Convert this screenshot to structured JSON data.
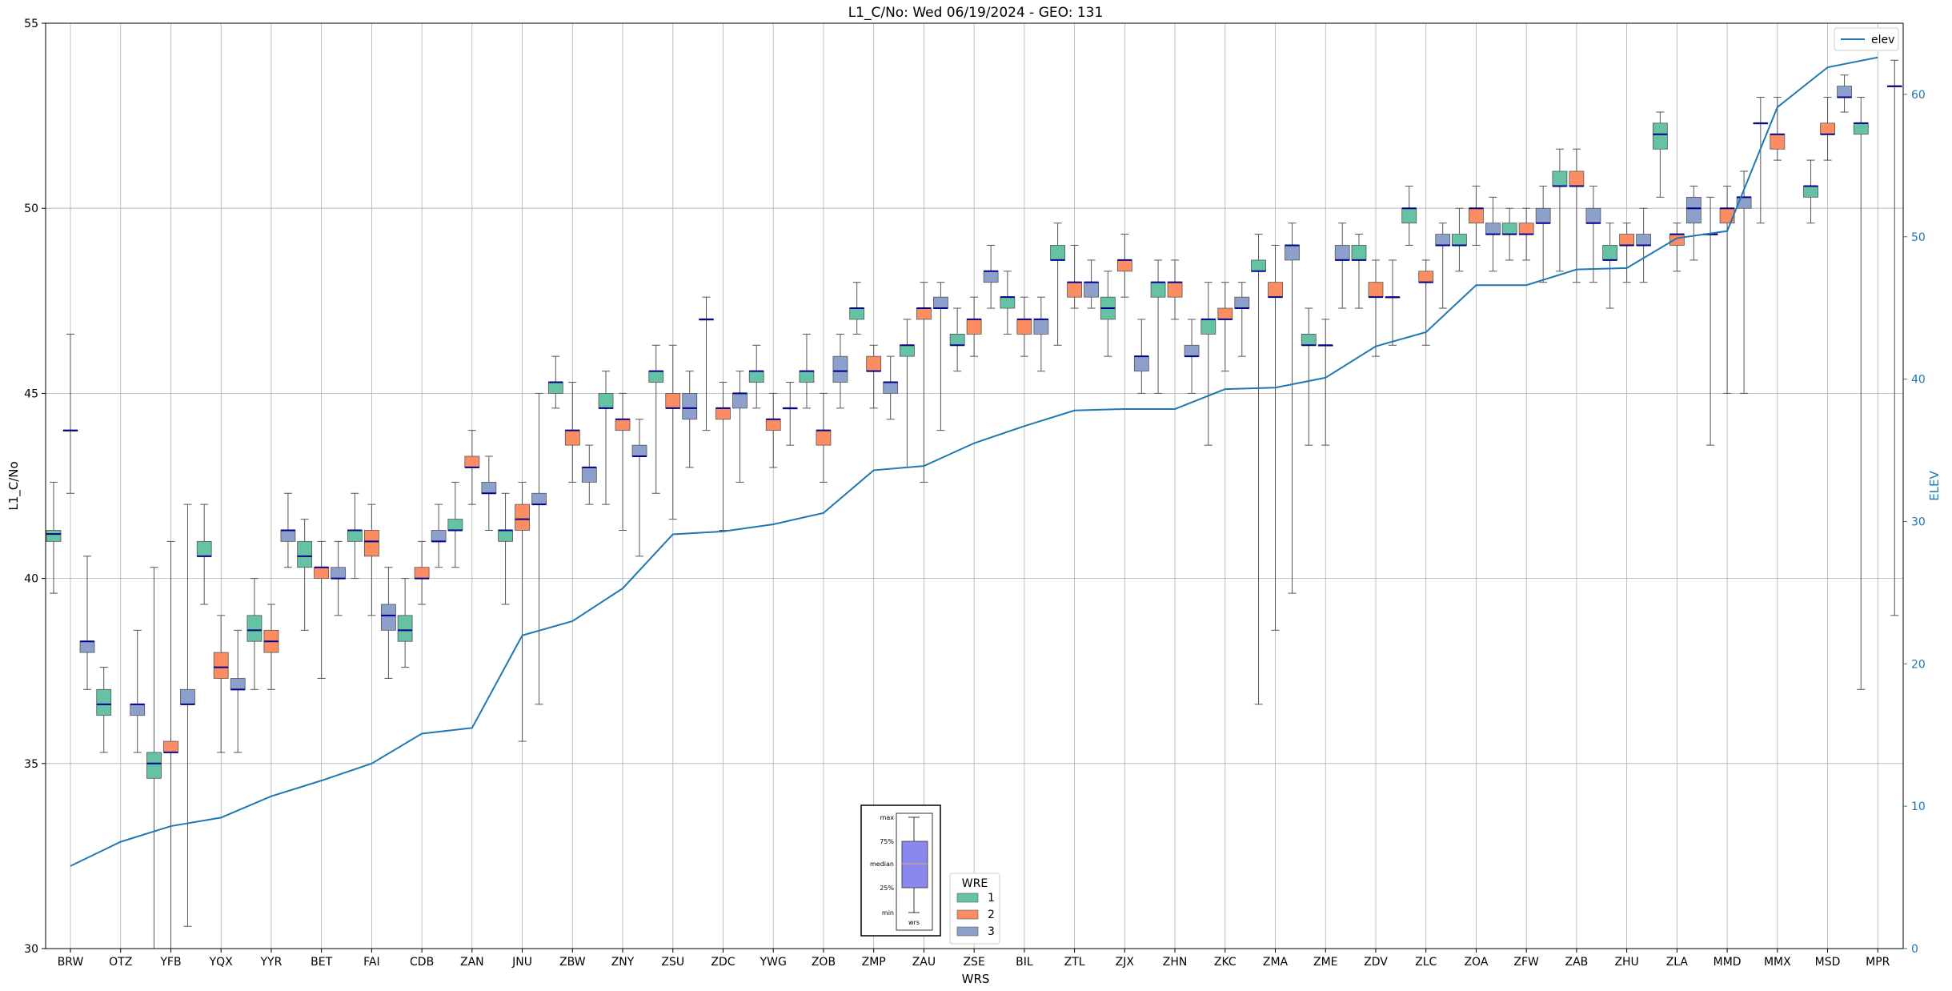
{
  "chart_data": {
    "type": "boxplot",
    "title": "L1_C/No: Wed 06/19/2024 - GEO: 131",
    "xlabel": "WRS",
    "ylabel": "L1_C/No",
    "ylabel_right": "ELEV",
    "ylim": [
      30,
      55
    ],
    "ylim_right": [
      0,
      65
    ],
    "yticks": [
      30,
      35,
      40,
      45,
      50,
      55
    ],
    "yticks_right": [
      0,
      10,
      20,
      30,
      40,
      50,
      60
    ],
    "grid": true,
    "categories": [
      "BRW",
      "OTZ",
      "YFB",
      "YQX",
      "YYR",
      "BET",
      "FAI",
      "CDB",
      "ZAN",
      "JNU",
      "ZBW",
      "ZNY",
      "ZSU",
      "ZDC",
      "YWG",
      "ZOB",
      "ZMP",
      "ZAU",
      "ZSE",
      "BIL",
      "ZTL",
      "ZJX",
      "ZHN",
      "ZKC",
      "ZMA",
      "ZME",
      "ZDV",
      "ZLC",
      "ZOA",
      "ZFW",
      "ZAB",
      "ZHU",
      "ZLA",
      "MMD",
      "MMX",
      "MSD",
      "MPR"
    ],
    "wre_colors": {
      "1": "#66c2a5",
      "2": "#fc8d62",
      "3": "#8da0cb"
    },
    "boxes": [
      {
        "cat": "BRW",
        "wre": 1,
        "min": 39.6,
        "q1": 41.0,
        "median": 41.2,
        "q3": 41.3,
        "max": 42.6
      },
      {
        "cat": "BRW",
        "wre": 2,
        "min": 42.3,
        "q1": 44.0,
        "median": 44.0,
        "q3": 44.0,
        "max": 46.6
      },
      {
        "cat": "BRW",
        "wre": 3,
        "min": 37.0,
        "q1": 38.0,
        "median": 38.3,
        "q3": 38.3,
        "max": 40.6
      },
      {
        "cat": "OTZ",
        "wre": 1,
        "min": 35.3,
        "q1": 36.3,
        "median": 36.6,
        "q3": 37.0,
        "max": 37.6
      },
      {
        "cat": "OTZ",
        "wre": 3,
        "min": 35.3,
        "q1": 36.3,
        "median": 36.6,
        "q3": 36.6,
        "max": 38.6
      },
      {
        "cat": "YFB",
        "wre": 1,
        "min": 30.0,
        "q1": 34.6,
        "median": 35.0,
        "q3": 35.3,
        "max": 40.3
      },
      {
        "cat": "YFB",
        "wre": 2,
        "min": 30.0,
        "q1": 35.3,
        "median": 35.3,
        "q3": 35.6,
        "max": 41.0
      },
      {
        "cat": "YFB",
        "wre": 3,
        "min": 30.6,
        "q1": 36.6,
        "median": 36.6,
        "q3": 37.0,
        "max": 42.0
      },
      {
        "cat": "YQX",
        "wre": 1,
        "min": 39.3,
        "q1": 40.6,
        "median": 40.6,
        "q3": 41.0,
        "max": 42.0
      },
      {
        "cat": "YQX",
        "wre": 2,
        "min": 35.3,
        "q1": 37.3,
        "median": 37.6,
        "q3": 38.0,
        "max": 39.0
      },
      {
        "cat": "YQX",
        "wre": 3,
        "min": 35.3,
        "q1": 37.0,
        "median": 37.0,
        "q3": 37.3,
        "max": 38.6
      },
      {
        "cat": "YYR",
        "wre": 1,
        "min": 37.0,
        "q1": 38.3,
        "median": 38.6,
        "q3": 39.0,
        "max": 40.0
      },
      {
        "cat": "YYR",
        "wre": 2,
        "min": 37.0,
        "q1": 38.0,
        "median": 38.3,
        "q3": 38.6,
        "max": 39.3
      },
      {
        "cat": "YYR",
        "wre": 3,
        "min": 40.3,
        "q1": 41.0,
        "median": 41.3,
        "q3": 41.3,
        "max": 42.3
      },
      {
        "cat": "BET",
        "wre": 1,
        "min": 38.6,
        "q1": 40.3,
        "median": 40.6,
        "q3": 41.0,
        "max": 41.6
      },
      {
        "cat": "BET",
        "wre": 2,
        "min": 37.3,
        "q1": 40.0,
        "median": 40.3,
        "q3": 40.3,
        "max": 41.0
      },
      {
        "cat": "BET",
        "wre": 3,
        "min": 39.0,
        "q1": 40.0,
        "median": 40.0,
        "q3": 40.3,
        "max": 41.0
      },
      {
        "cat": "FAI",
        "wre": 1,
        "min": 40.0,
        "q1": 41.0,
        "median": 41.3,
        "q3": 41.3,
        "max": 42.3
      },
      {
        "cat": "FAI",
        "wre": 2,
        "min": 39.0,
        "q1": 40.6,
        "median": 41.0,
        "q3": 41.3,
        "max": 42.0
      },
      {
        "cat": "FAI",
        "wre": 3,
        "min": 37.3,
        "q1": 38.6,
        "median": 39.0,
        "q3": 39.3,
        "max": 40.3
      },
      {
        "cat": "CDB",
        "wre": 1,
        "min": 37.6,
        "q1": 38.3,
        "median": 38.6,
        "q3": 39.0,
        "max": 40.0
      },
      {
        "cat": "CDB",
        "wre": 2,
        "min": 39.3,
        "q1": 40.0,
        "median": 40.0,
        "q3": 40.3,
        "max": 41.0
      },
      {
        "cat": "CDB",
        "wre": 3,
        "min": 40.3,
        "q1": 41.0,
        "median": 41.0,
        "q3": 41.3,
        "max": 42.0
      },
      {
        "cat": "ZAN",
        "wre": 1,
        "min": 40.3,
        "q1": 41.3,
        "median": 41.3,
        "q3": 41.6,
        "max": 42.6
      },
      {
        "cat": "ZAN",
        "wre": 2,
        "min": 42.0,
        "q1": 43.0,
        "median": 43.0,
        "q3": 43.3,
        "max": 44.0
      },
      {
        "cat": "ZAN",
        "wre": 3,
        "min": 41.3,
        "q1": 42.3,
        "median": 42.3,
        "q3": 42.6,
        "max": 43.3
      },
      {
        "cat": "JNU",
        "wre": 1,
        "min": 39.3,
        "q1": 41.0,
        "median": 41.3,
        "q3": 41.3,
        "max": 42.3
      },
      {
        "cat": "JNU",
        "wre": 2,
        "min": 35.6,
        "q1": 41.3,
        "median": 41.6,
        "q3": 42.0,
        "max": 42.6
      },
      {
        "cat": "JNU",
        "wre": 3,
        "min": 36.6,
        "q1": 42.0,
        "median": 42.0,
        "q3": 42.3,
        "max": 45.0
      },
      {
        "cat": "ZBW",
        "wre": 1,
        "min": 44.6,
        "q1": 45.0,
        "median": 45.3,
        "q3": 45.3,
        "max": 46.0
      },
      {
        "cat": "ZBW",
        "wre": 2,
        "min": 42.6,
        "q1": 43.6,
        "median": 44.0,
        "q3": 44.0,
        "max": 45.3
      },
      {
        "cat": "ZBW",
        "wre": 3,
        "min": 42.0,
        "q1": 42.6,
        "median": 43.0,
        "q3": 43.0,
        "max": 43.6
      },
      {
        "cat": "ZNY",
        "wre": 1,
        "min": 42.0,
        "q1": 44.6,
        "median": 44.6,
        "q3": 45.0,
        "max": 45.6
      },
      {
        "cat": "ZNY",
        "wre": 2,
        "min": 41.3,
        "q1": 44.0,
        "median": 44.3,
        "q3": 44.3,
        "max": 45.0
      },
      {
        "cat": "ZNY",
        "wre": 3,
        "min": 40.6,
        "q1": 43.3,
        "median": 43.3,
        "q3": 43.6,
        "max": 44.3
      },
      {
        "cat": "ZSU",
        "wre": 1,
        "min": 42.3,
        "q1": 45.3,
        "median": 45.6,
        "q3": 45.6,
        "max": 46.3
      },
      {
        "cat": "ZSU",
        "wre": 2,
        "min": 41.6,
        "q1": 44.6,
        "median": 44.6,
        "q3": 45.0,
        "max": 46.3
      },
      {
        "cat": "ZSU",
        "wre": 3,
        "min": 43.0,
        "q1": 44.3,
        "median": 44.6,
        "q3": 45.0,
        "max": 45.6
      },
      {
        "cat": "ZDC",
        "wre": 1,
        "min": 44.0,
        "q1": 47.0,
        "median": 47.0,
        "q3": 47.0,
        "max": 47.6
      },
      {
        "cat": "ZDC",
        "wre": 2,
        "min": 41.3,
        "q1": 44.3,
        "median": 44.6,
        "q3": 44.6,
        "max": 45.3
      },
      {
        "cat": "ZDC",
        "wre": 3,
        "min": 42.6,
        "q1": 44.6,
        "median": 45.0,
        "q3": 45.0,
        "max": 45.6
      },
      {
        "cat": "YWG",
        "wre": 1,
        "min": 44.6,
        "q1": 45.3,
        "median": 45.6,
        "q3": 45.6,
        "max": 46.3
      },
      {
        "cat": "YWG",
        "wre": 2,
        "min": 43.0,
        "q1": 44.0,
        "median": 44.3,
        "q3": 44.3,
        "max": 45.0
      },
      {
        "cat": "YWG",
        "wre": 3,
        "min": 43.6,
        "q1": 44.6,
        "median": 44.6,
        "q3": 44.6,
        "max": 45.3
      },
      {
        "cat": "ZOB",
        "wre": 1,
        "min": 44.6,
        "q1": 45.3,
        "median": 45.6,
        "q3": 45.6,
        "max": 46.6
      },
      {
        "cat": "ZOB",
        "wre": 2,
        "min": 42.6,
        "q1": 43.6,
        "median": 44.0,
        "q3": 44.0,
        "max": 45.0
      },
      {
        "cat": "ZOB",
        "wre": 3,
        "min": 44.6,
        "q1": 45.3,
        "median": 45.6,
        "q3": 46.0,
        "max": 46.6
      },
      {
        "cat": "ZMP",
        "wre": 1,
        "min": 46.6,
        "q1": 47.0,
        "median": 47.3,
        "q3": 47.3,
        "max": 48.0
      },
      {
        "cat": "ZMP",
        "wre": 2,
        "min": 44.6,
        "q1": 45.6,
        "median": 45.6,
        "q3": 46.0,
        "max": 46.3
      },
      {
        "cat": "ZMP",
        "wre": 3,
        "min": 44.3,
        "q1": 45.0,
        "median": 45.3,
        "q3": 45.3,
        "max": 46.0
      },
      {
        "cat": "ZAU",
        "wre": 1,
        "min": 43.0,
        "q1": 46.0,
        "median": 46.3,
        "q3": 46.3,
        "max": 47.0
      },
      {
        "cat": "ZAU",
        "wre": 2,
        "min": 42.6,
        "q1": 47.0,
        "median": 47.3,
        "q3": 47.3,
        "max": 48.0
      },
      {
        "cat": "ZAU",
        "wre": 3,
        "min": 44.0,
        "q1": 47.3,
        "median": 47.3,
        "q3": 47.6,
        "max": 48.0
      },
      {
        "cat": "ZSE",
        "wre": 1,
        "min": 45.6,
        "q1": 46.3,
        "median": 46.3,
        "q3": 46.6,
        "max": 47.3
      },
      {
        "cat": "ZSE",
        "wre": 2,
        "min": 46.0,
        "q1": 46.6,
        "median": 47.0,
        "q3": 47.0,
        "max": 47.6
      },
      {
        "cat": "ZSE",
        "wre": 3,
        "min": 47.3,
        "q1": 48.0,
        "median": 48.3,
        "q3": 48.3,
        "max": 49.0
      },
      {
        "cat": "BIL",
        "wre": 1,
        "min": 46.6,
        "q1": 47.3,
        "median": 47.6,
        "q3": 47.6,
        "max": 48.3
      },
      {
        "cat": "BIL",
        "wre": 2,
        "min": 46.0,
        "q1": 46.6,
        "median": 47.0,
        "q3": 47.0,
        "max": 47.6
      },
      {
        "cat": "BIL",
        "wre": 3,
        "min": 45.6,
        "q1": 46.6,
        "median": 47.0,
        "q3": 47.0,
        "max": 47.6
      },
      {
        "cat": "ZTL",
        "wre": 1,
        "min": 46.3,
        "q1": 48.6,
        "median": 48.6,
        "q3": 49.0,
        "max": 49.6
      },
      {
        "cat": "ZTL",
        "wre": 2,
        "min": 47.3,
        "q1": 47.6,
        "median": 48.0,
        "q3": 48.0,
        "max": 49.0
      },
      {
        "cat": "ZTL",
        "wre": 3,
        "min": 47.3,
        "q1": 47.6,
        "median": 48.0,
        "q3": 48.0,
        "max": 48.6
      },
      {
        "cat": "ZJX",
        "wre": 1,
        "min": 46.0,
        "q1": 47.0,
        "median": 47.3,
        "q3": 47.6,
        "max": 48.3
      },
      {
        "cat": "ZJX",
        "wre": 2,
        "min": 47.6,
        "q1": 48.3,
        "median": 48.6,
        "q3": 48.6,
        "max": 49.3
      },
      {
        "cat": "ZJX",
        "wre": 3,
        "min": 45.0,
        "q1": 45.6,
        "median": 46.0,
        "q3": 46.0,
        "max": 47.0
      },
      {
        "cat": "ZHN",
        "wre": 1,
        "min": 45.0,
        "q1": 47.6,
        "median": 48.0,
        "q3": 48.0,
        "max": 48.6
      },
      {
        "cat": "ZHN",
        "wre": 2,
        "min": 47.0,
        "q1": 47.6,
        "median": 48.0,
        "q3": 48.0,
        "max": 48.6
      },
      {
        "cat": "ZHN",
        "wre": 3,
        "min": 45.0,
        "q1": 46.0,
        "median": 46.0,
        "q3": 46.3,
        "max": 47.0
      },
      {
        "cat": "ZKC",
        "wre": 1,
        "min": 43.6,
        "q1": 46.6,
        "median": 47.0,
        "q3": 47.0,
        "max": 48.0
      },
      {
        "cat": "ZKC",
        "wre": 2,
        "min": 45.6,
        "q1": 47.0,
        "median": 47.0,
        "q3": 47.3,
        "max": 48.0
      },
      {
        "cat": "ZKC",
        "wre": 3,
        "min": 46.0,
        "q1": 47.3,
        "median": 47.3,
        "q3": 47.6,
        "max": 48.0
      },
      {
        "cat": "ZMA",
        "wre": 1,
        "min": 36.6,
        "q1": 48.3,
        "median": 48.3,
        "q3": 48.6,
        "max": 49.3
      },
      {
        "cat": "ZMA",
        "wre": 2,
        "min": 38.6,
        "q1": 47.6,
        "median": 47.6,
        "q3": 48.0,
        "max": 49.0
      },
      {
        "cat": "ZMA",
        "wre": 3,
        "min": 39.6,
        "q1": 48.6,
        "median": 49.0,
        "q3": 49.0,
        "max": 49.6
      },
      {
        "cat": "ZME",
        "wre": 1,
        "min": 43.6,
        "q1": 46.3,
        "median": 46.3,
        "q3": 46.6,
        "max": 47.3
      },
      {
        "cat": "ZME",
        "wre": 2,
        "min": 43.6,
        "q1": 46.3,
        "median": 46.3,
        "q3": 46.3,
        "max": 47.0
      },
      {
        "cat": "ZME",
        "wre": 3,
        "min": 47.3,
        "q1": 48.6,
        "median": 48.6,
        "q3": 49.0,
        "max": 49.6
      },
      {
        "cat": "ZDV",
        "wre": 1,
        "min": 47.3,
        "q1": 48.6,
        "median": 48.6,
        "q3": 49.0,
        "max": 49.3
      },
      {
        "cat": "ZDV",
        "wre": 2,
        "min": 46.0,
        "q1": 47.6,
        "median": 47.6,
        "q3": 48.0,
        "max": 48.6
      },
      {
        "cat": "ZDV",
        "wre": 3,
        "min": 46.3,
        "q1": 47.6,
        "median": 47.6,
        "q3": 47.6,
        "max": 48.6
      },
      {
        "cat": "ZLC",
        "wre": 1,
        "min": 49.0,
        "q1": 49.6,
        "median": 50.0,
        "q3": 50.0,
        "max": 50.6
      },
      {
        "cat": "ZLC",
        "wre": 2,
        "min": 46.3,
        "q1": 48.0,
        "median": 48.0,
        "q3": 48.3,
        "max": 48.6
      },
      {
        "cat": "ZLC",
        "wre": 3,
        "min": 47.3,
        "q1": 49.0,
        "median": 49.0,
        "q3": 49.3,
        "max": 49.6
      },
      {
        "cat": "ZOA",
        "wre": 1,
        "min": 48.3,
        "q1": 49.0,
        "median": 49.0,
        "q3": 49.3,
        "max": 50.0
      },
      {
        "cat": "ZOA",
        "wre": 2,
        "min": 49.0,
        "q1": 49.6,
        "median": 50.0,
        "q3": 50.0,
        "max": 50.6
      },
      {
        "cat": "ZOA",
        "wre": 3,
        "min": 48.3,
        "q1": 49.3,
        "median": 49.3,
        "q3": 49.6,
        "max": 50.3
      },
      {
        "cat": "ZFW",
        "wre": 1,
        "min": 48.6,
        "q1": 49.3,
        "median": 49.3,
        "q3": 49.6,
        "max": 50.0
      },
      {
        "cat": "ZFW",
        "wre": 2,
        "min": 48.6,
        "q1": 49.3,
        "median": 49.3,
        "q3": 49.6,
        "max": 50.0
      },
      {
        "cat": "ZFW",
        "wre": 3,
        "min": 48.0,
        "q1": 49.6,
        "median": 49.6,
        "q3": 50.0,
        "max": 50.6
      },
      {
        "cat": "ZAB",
        "wre": 1,
        "min": 48.3,
        "q1": 50.6,
        "median": 50.6,
        "q3": 51.0,
        "max": 51.6
      },
      {
        "cat": "ZAB",
        "wre": 2,
        "min": 48.0,
        "q1": 50.6,
        "median": 50.6,
        "q3": 51.0,
        "max": 51.6
      },
      {
        "cat": "ZAB",
        "wre": 3,
        "min": 48.0,
        "q1": 49.6,
        "median": 49.6,
        "q3": 50.0,
        "max": 50.6
      },
      {
        "cat": "ZHU",
        "wre": 1,
        "min": 47.3,
        "q1": 48.6,
        "median": 48.6,
        "q3": 49.0,
        "max": 49.6
      },
      {
        "cat": "ZHU",
        "wre": 2,
        "min": 48.0,
        "q1": 49.0,
        "median": 49.0,
        "q3": 49.3,
        "max": 49.6
      },
      {
        "cat": "ZHU",
        "wre": 3,
        "min": 48.0,
        "q1": 49.0,
        "median": 49.0,
        "q3": 49.3,
        "max": 50.0
      },
      {
        "cat": "ZLA",
        "wre": 1,
        "min": 50.3,
        "q1": 51.6,
        "median": 52.0,
        "q3": 52.3,
        "max": 52.6
      },
      {
        "cat": "ZLA",
        "wre": 2,
        "min": 48.3,
        "q1": 49.0,
        "median": 49.3,
        "q3": 49.3,
        "max": 49.6
      },
      {
        "cat": "ZLA",
        "wre": 3,
        "min": 48.6,
        "q1": 49.6,
        "median": 50.0,
        "q3": 50.3,
        "max": 50.6
      },
      {
        "cat": "MMD",
        "wre": 1,
        "min": 43.6,
        "q1": 49.3,
        "median": 49.3,
        "q3": 49.3,
        "max": 50.3
      },
      {
        "cat": "MMD",
        "wre": 2,
        "min": 45.0,
        "q1": 49.6,
        "median": 50.0,
        "q3": 50.0,
        "max": 50.6
      },
      {
        "cat": "MMD",
        "wre": 3,
        "min": 45.0,
        "q1": 50.0,
        "median": 50.3,
        "q3": 50.3,
        "max": 51.0
      },
      {
        "cat": "MMX",
        "wre": 1,
        "min": 49.6,
        "q1": 52.3,
        "median": 52.3,
        "q3": 52.3,
        "max": 53.0
      },
      {
        "cat": "MMX",
        "wre": 2,
        "min": 51.3,
        "q1": 51.6,
        "median": 52.0,
        "q3": 52.0,
        "max": 53.0
      },
      {
        "cat": "MSD",
        "wre": 1,
        "min": 49.6,
        "q1": 50.3,
        "median": 50.6,
        "q3": 50.6,
        "max": 51.3
      },
      {
        "cat": "MSD",
        "wre": 2,
        "min": 51.3,
        "q1": 52.0,
        "median": 52.0,
        "q3": 52.3,
        "max": 53.0
      },
      {
        "cat": "MSD",
        "wre": 3,
        "min": 52.6,
        "q1": 53.0,
        "median": 53.0,
        "q3": 53.3,
        "max": 53.6
      },
      {
        "cat": "MPR",
        "wre": 1,
        "min": 37.0,
        "q1": 52.0,
        "median": 52.3,
        "q3": 52.3,
        "max": 53.0
      },
      {
        "cat": "MPR",
        "wre": 3,
        "min": 39.0,
        "q1": 53.3,
        "median": 53.3,
        "q3": 53.3,
        "max": 54.0
      }
    ],
    "elev_series": {
      "name": "elev",
      "color": "#1f77b4",
      "values": [
        5.8,
        7.5,
        8.6,
        9.2,
        10.7,
        11.8,
        13.0,
        15.1,
        15.5,
        22.0,
        23.0,
        25.3,
        29.1,
        29.3,
        29.8,
        30.6,
        33.6,
        33.9,
        35.5,
        36.7,
        37.8,
        37.9,
        37.9,
        39.3,
        39.4,
        40.1,
        42.3,
        43.3,
        46.6,
        46.6,
        47.7,
        47.8,
        49.9,
        50.4,
        59.1,
        61.9,
        62.6
      ]
    },
    "legend_elev": {
      "label": "elev",
      "placement": "upper-right"
    },
    "legend_wre": {
      "title": "WRE",
      "labels": [
        "1",
        "2",
        "3"
      ],
      "placement": "bottom-center"
    },
    "key_box": {
      "labels": [
        "max",
        "75%",
        "median",
        "25%",
        "min"
      ],
      "xlabel": "wrs",
      "fill": "#8888ee",
      "median_color": "#e8a070"
    }
  }
}
